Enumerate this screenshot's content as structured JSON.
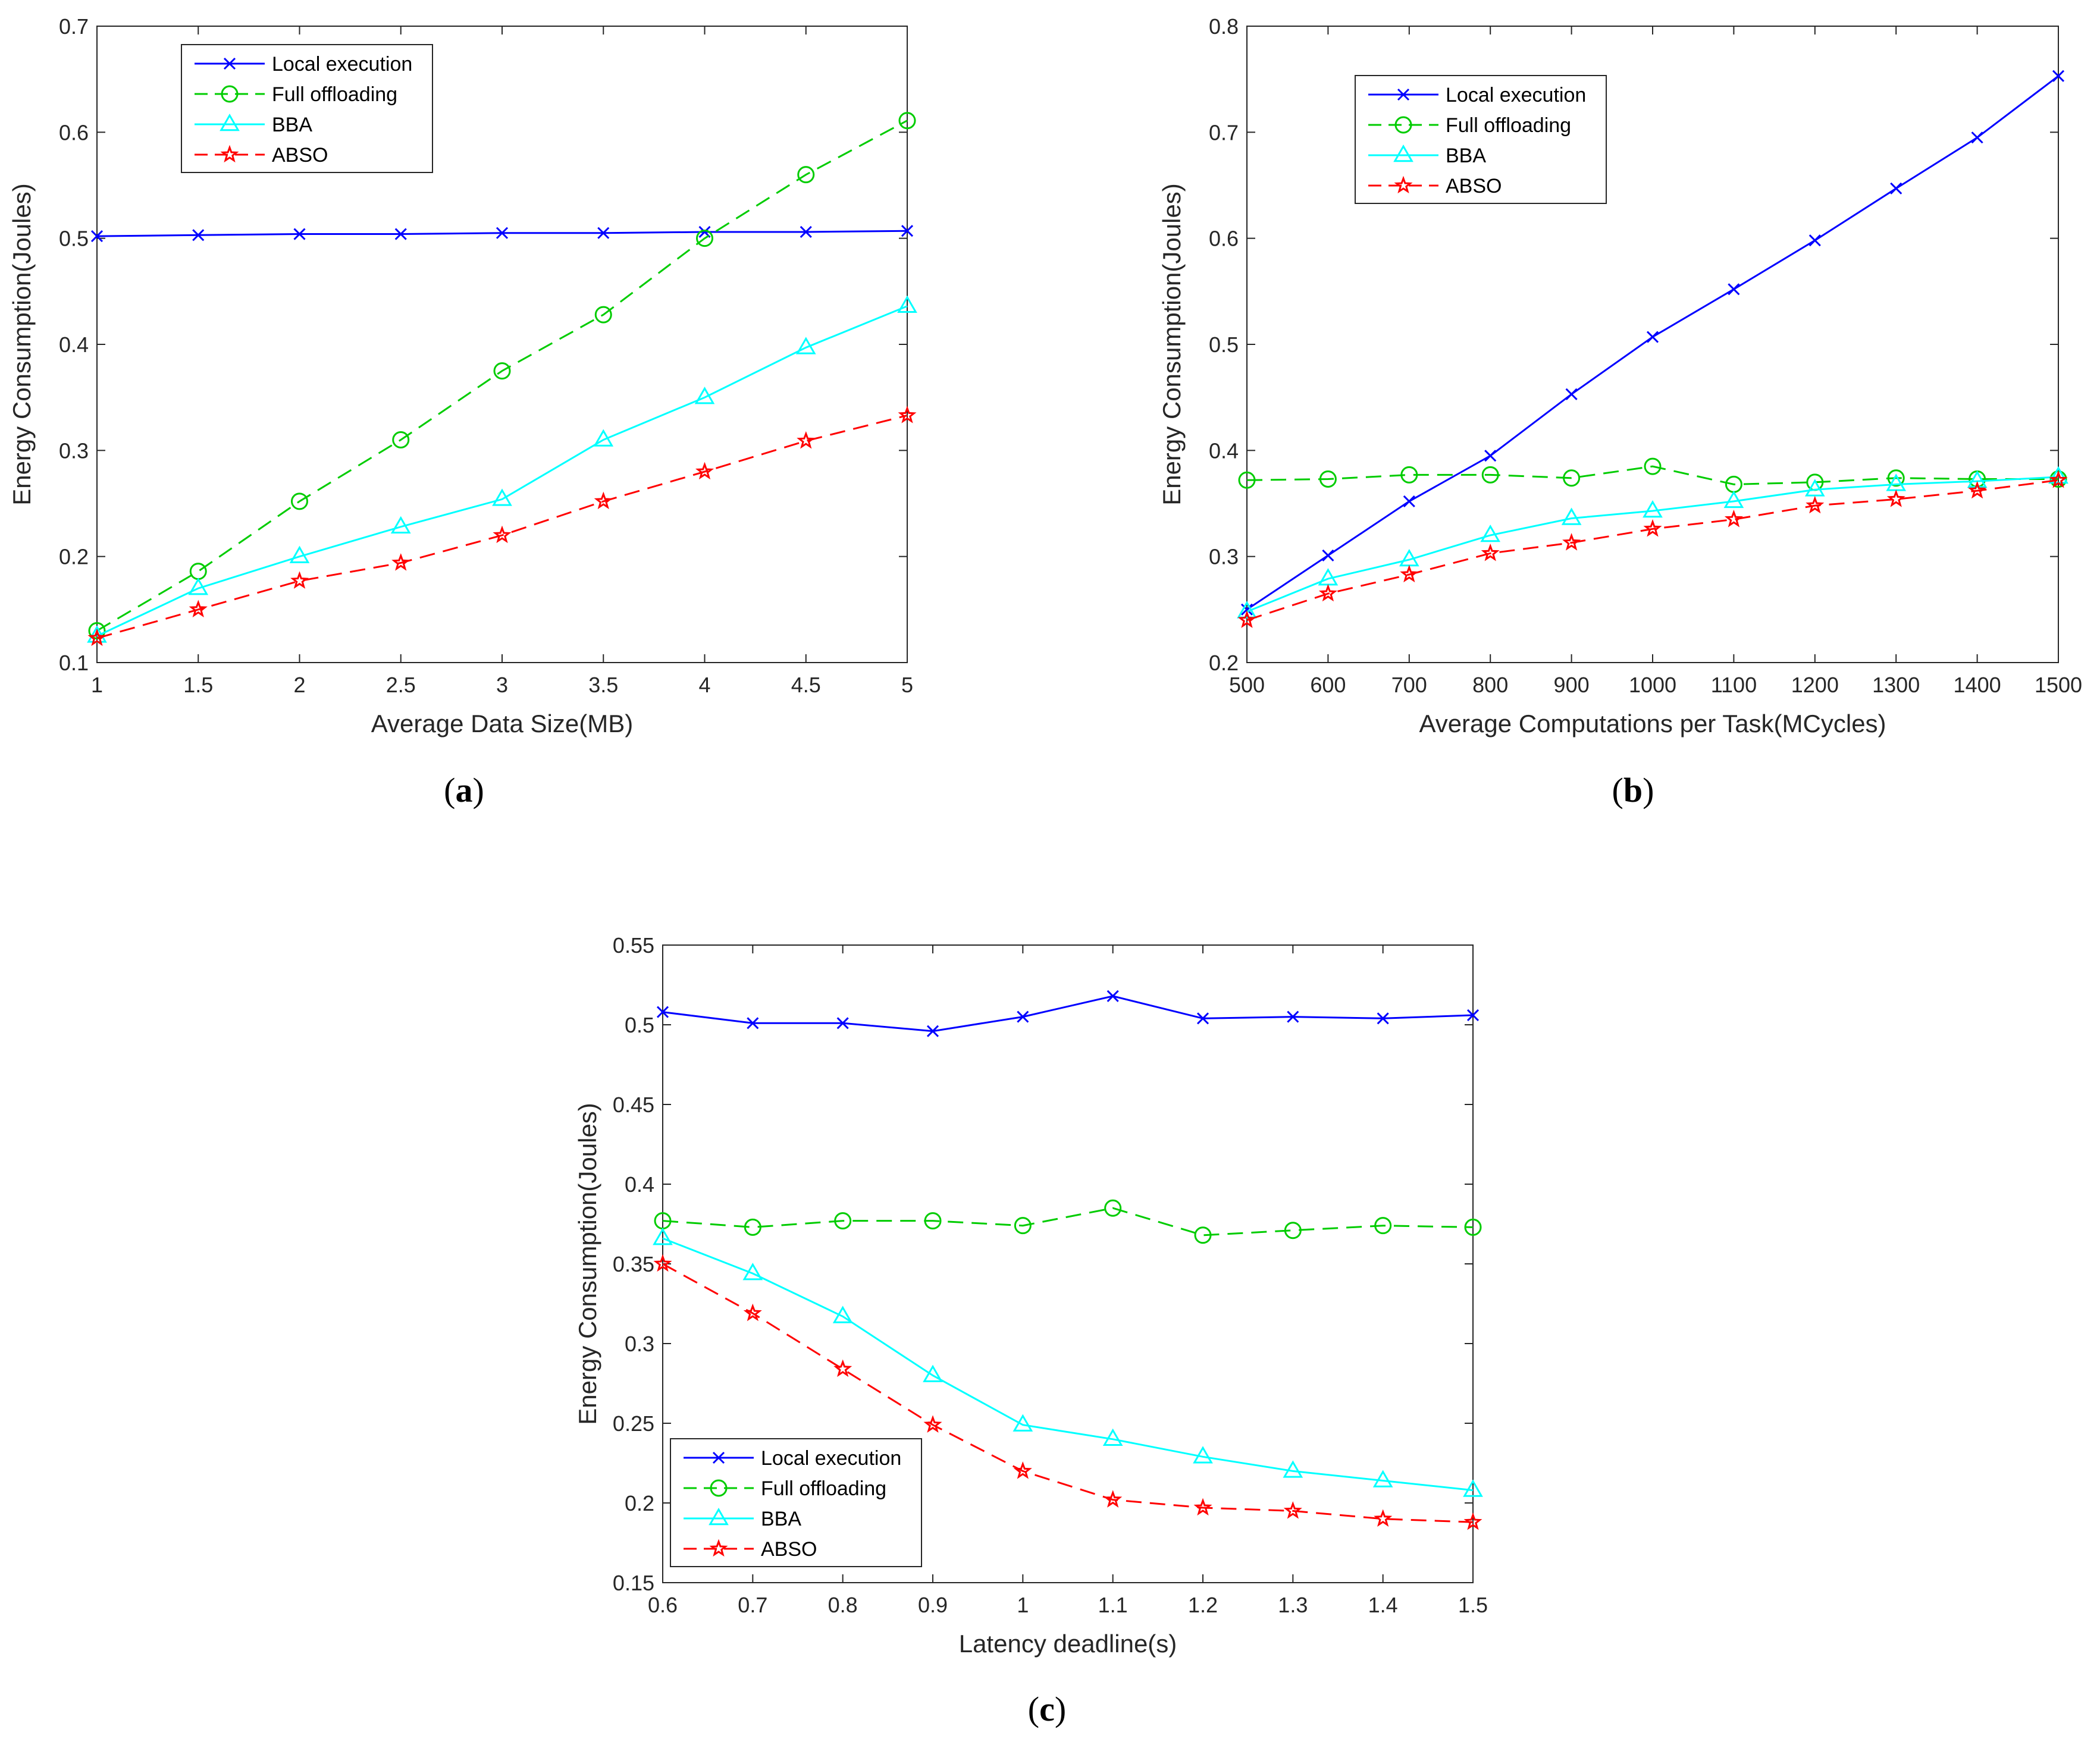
{
  "colors": {
    "local": "#0000ff",
    "full": "#00cc00",
    "bba": "#00ffff",
    "abso": "#ff0000",
    "axis": "#262626"
  },
  "legend_labels": [
    "Local execution",
    "Full offloading",
    "BBA",
    "ABSO"
  ],
  "chart_data": [
    {
      "type": "line",
      "caption_letter": "a",
      "xlabel": "Average Data Size(MB)",
      "ylabel": "Energy Consumption(Joules)",
      "x": [
        1,
        1.5,
        2,
        2.5,
        3,
        3.5,
        4,
        4.5,
        5
      ],
      "xticks": [
        "1",
        "1.5",
        "2",
        "2.5",
        "3",
        "3.5",
        "4",
        "4.5",
        "5"
      ],
      "yticks": [
        "0.1",
        "0.2",
        "0.3",
        "0.4",
        "0.5",
        "0.6",
        "0.7"
      ],
      "xlim": [
        1,
        5
      ],
      "ylim": [
        0.1,
        0.7
      ],
      "legend_position": "top-left",
      "series": [
        {
          "name": "Local execution",
          "values": [
            0.502,
            0.503,
            0.504,
            0.504,
            0.505,
            0.505,
            0.506,
            0.506,
            0.507
          ]
        },
        {
          "name": "Full offloading",
          "values": [
            0.13,
            0.186,
            0.252,
            0.31,
            0.375,
            0.428,
            0.5,
            0.56,
            0.611
          ]
        },
        {
          "name": "BBA",
          "values": [
            0.125,
            0.17,
            0.2,
            0.228,
            0.254,
            0.31,
            0.35,
            0.397,
            0.436
          ]
        },
        {
          "name": "ABSO",
          "values": [
            0.123,
            0.15,
            0.177,
            0.194,
            0.22,
            0.252,
            0.28,
            0.309,
            0.333
          ]
        }
      ]
    },
    {
      "type": "line",
      "caption_letter": "b",
      "xlabel": "Average Computations per Task(MCycles)",
      "ylabel": "Energy Consumption(Joules)",
      "x": [
        500,
        600,
        700,
        800,
        900,
        1000,
        1100,
        1200,
        1300,
        1400,
        1500
      ],
      "xticks": [
        "500",
        "600",
        "700",
        "800",
        "900",
        "1000",
        "1100",
        "1200",
        "1300",
        "1400",
        "1500"
      ],
      "yticks": [
        "0.2",
        "0.3",
        "0.4",
        "0.5",
        "0.6",
        "0.7",
        "0.8"
      ],
      "xlim": [
        500,
        1500
      ],
      "ylim": [
        0.2,
        0.8
      ],
      "legend_position": "top-left",
      "series": [
        {
          "name": "Local execution",
          "values": [
            0.25,
            0.301,
            0.352,
            0.395,
            0.453,
            0.507,
            0.552,
            0.598,
            0.647,
            0.695,
            0.753
          ]
        },
        {
          "name": "Full offloading",
          "values": [
            0.372,
            0.373,
            0.377,
            0.377,
            0.374,
            0.385,
            0.368,
            0.37,
            0.374,
            0.373,
            0.373
          ]
        },
        {
          "name": "BBA",
          "values": [
            0.248,
            0.279,
            0.297,
            0.32,
            0.336,
            0.343,
            0.352,
            0.363,
            0.368,
            0.371,
            0.375
          ]
        },
        {
          "name": "ABSO",
          "values": [
            0.24,
            0.265,
            0.283,
            0.303,
            0.313,
            0.326,
            0.335,
            0.348,
            0.354,
            0.362,
            0.372
          ]
        }
      ]
    },
    {
      "type": "line",
      "caption_letter": "c",
      "xlabel": "Latency deadline(s)",
      "ylabel": "Energy Consumption(Joules)",
      "x": [
        0.6,
        0.7,
        0.8,
        0.9,
        1.0,
        1.1,
        1.2,
        1.3,
        1.4,
        1.5
      ],
      "xticks": [
        "0.6",
        "0.7",
        "0.8",
        "0.9",
        "1",
        "1.1",
        "1.2",
        "1.3",
        "1.4",
        "1.5"
      ],
      "yticks": [
        "0.15",
        "0.2",
        "0.25",
        "0.3",
        "0.35",
        "0.4",
        "0.45",
        "0.5",
        "0.55"
      ],
      "xlim": [
        0.6,
        1.5
      ],
      "ylim": [
        0.15,
        0.55
      ],
      "legend_position": "bottom-left",
      "series": [
        {
          "name": "Local execution",
          "values": [
            0.508,
            0.501,
            0.501,
            0.496,
            0.505,
            0.518,
            0.504,
            0.505,
            0.504,
            0.506
          ]
        },
        {
          "name": "Full offloading",
          "values": [
            0.377,
            0.373,
            0.377,
            0.377,
            0.374,
            0.385,
            0.368,
            0.371,
            0.374,
            0.373
          ]
        },
        {
          "name": "BBA",
          "values": [
            0.366,
            0.344,
            0.317,
            0.28,
            0.249,
            0.24,
            0.229,
            0.22,
            0.214,
            0.208
          ]
        },
        {
          "name": "ABSO",
          "values": [
            0.35,
            0.319,
            0.284,
            0.249,
            0.22,
            0.202,
            0.197,
            0.195,
            0.19,
            0.188
          ]
        }
      ]
    }
  ]
}
